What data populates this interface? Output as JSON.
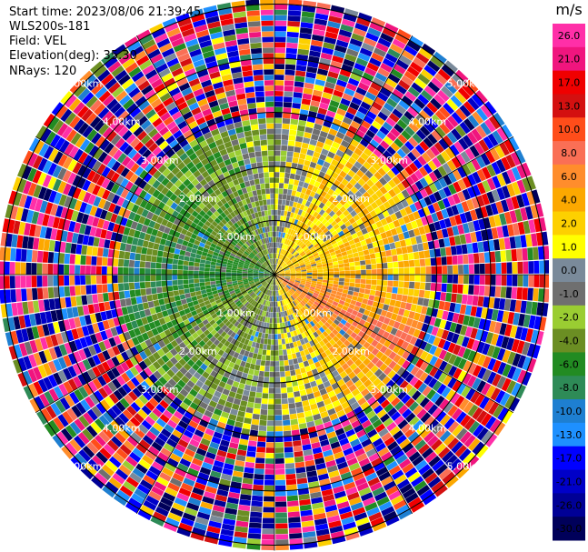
{
  "info": {
    "start_time": "Start time: 2023/08/06 21:39:45",
    "instrument": "WLS200s-181",
    "field": "Field: VEL",
    "elevation": "Elevation(deg): 35.30",
    "nrays": "NRays: 120"
  },
  "chart_data": {
    "type": "heatmap",
    "projection": "polar-ppi",
    "field": "VEL",
    "units": "m/s",
    "n_rays": 120,
    "range_rings_km": [
      1,
      2,
      3,
      4,
      5
    ],
    "range_ring_labels": [
      "1.00km",
      "2.00km",
      "3.00km",
      "4.00km",
      "5.00km"
    ],
    "max_range_km": 5.1,
    "spoke_azimuths_deg": [
      0,
      30,
      60,
      90,
      120,
      150,
      180,
      210,
      240,
      270,
      300,
      330
    ],
    "inner_valid_range_km": 2.9,
    "velocity_pattern_by_azimuth_deg": [
      {
        "az": 0,
        "velocity": -0.5
      },
      {
        "az": 30,
        "velocity": 3
      },
      {
        "az": 60,
        "velocity": 3
      },
      {
        "az": 90,
        "velocity": 4
      },
      {
        "az": 120,
        "velocity": 8
      },
      {
        "az": 150,
        "velocity": 3
      },
      {
        "az": 180,
        "velocity": -0.5
      },
      {
        "az": 210,
        "velocity": -2
      },
      {
        "az": 240,
        "velocity": -3
      },
      {
        "az": 270,
        "velocity": -6
      },
      {
        "az": 300,
        "velocity": -4
      },
      {
        "az": 330,
        "velocity": -3
      }
    ],
    "colorbar": {
      "title": "m/s",
      "boundaries": [
        -30,
        -26,
        -21,
        -17,
        -13,
        -10,
        -8,
        -6,
        -4,
        -2,
        -1,
        0,
        1,
        2,
        4,
        6,
        8,
        10,
        13,
        17,
        21,
        26,
        30
      ],
      "tick_labels": [
        "26.0",
        "21.0",
        "17.0",
        "13.0",
        "10.0",
        "8.0",
        "6.0",
        "4.0",
        "2.0",
        "1.0",
        "0.0",
        "-1.0",
        "-2.0",
        "-4.0",
        "-6.0",
        "-8.0",
        "-10.0",
        "-13.0",
        "-17.0",
        "-21.0",
        "-26.0",
        "-30.0"
      ],
      "colors_top_to_bottom": [
        "#ff2fa8",
        "#f0157e",
        "#f00000",
        "#d41010",
        "#ff4d1a",
        "#fa6f55",
        "#ff8d2c",
        "#fca800",
        "#fdd000",
        "#ffff00",
        "#7a8a9a",
        "#6f6f6f",
        "#9acd32",
        "#6b8e23",
        "#228b22",
        "#2e8b57",
        "#1e7fd1",
        "#1e90ff",
        "#0000ff",
        "#0000c8",
        "#000096",
        "#00005a"
      ]
    }
  }
}
